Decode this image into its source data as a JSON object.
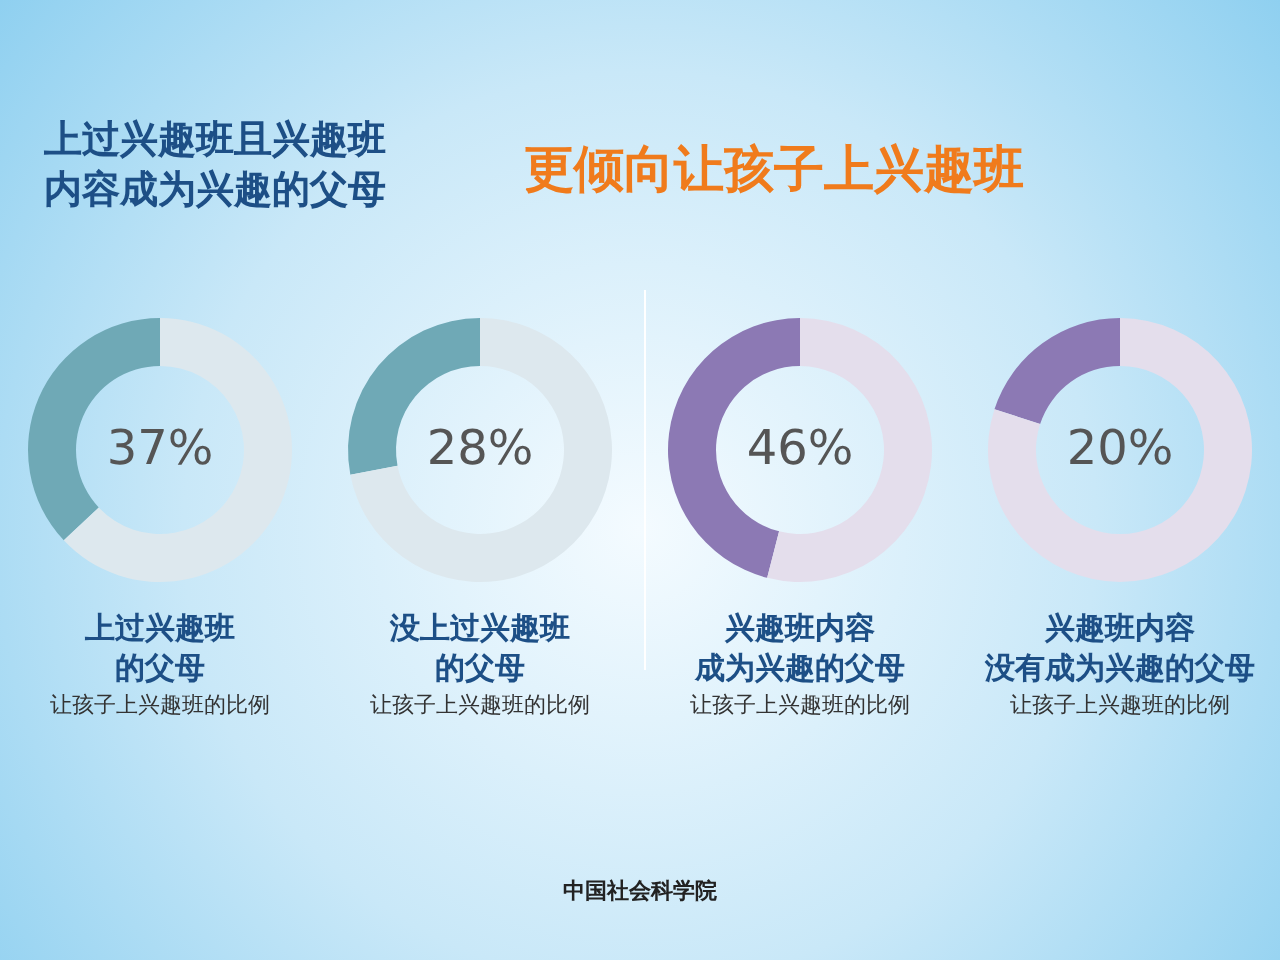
{
  "chart_data": [
    {
      "type": "other",
      "title": "上过兴趣班且兴趣班内容成为兴趣的父母",
      "subtitle": "更倾向让孩子上兴趣班",
      "annotations": [
        "中国社会科学院"
      ]
    },
    {
      "type": "donut",
      "title": "上过兴趣班的父母",
      "subtitle": "让孩子上兴趣班的比例",
      "categories": [
        null,
        null
      ],
      "values": [
        37,
        63
      ],
      "colors": [
        "#6fa9b6",
        "#dde8ee"
      ],
      "value_labels": [
        "37%",
        null
      ]
    },
    {
      "type": "donut",
      "title": "没上过兴趣班的父母",
      "subtitle": "让孩子上兴趣班的比例",
      "categories": [
        null,
        null
      ],
      "values": [
        28,
        72
      ],
      "colors": [
        "#6fa9b6",
        "#dde8ee"
      ],
      "value_labels": [
        "28%",
        null
      ]
    },
    {
      "type": "donut",
      "title": "兴趣班内容成为兴趣的父母",
      "subtitle": "让孩子上兴趣班的比例",
      "categories": [
        null,
        null
      ],
      "values": [
        46,
        54
      ],
      "colors": [
        "#8c79b4",
        "#e4deec"
      ],
      "value_labels": [
        "46%",
        null
      ]
    },
    {
      "type": "donut",
      "title": "兴趣班内容没有成为兴趣的父母",
      "subtitle": "让孩子上兴趣班的比例",
      "categories": [
        null,
        null
      ],
      "values": [
        20,
        80
      ],
      "colors": [
        "#8c79b4",
        "#e4deec"
      ],
      "value_labels": [
        "20%",
        null
      ]
    }
  ]
}
